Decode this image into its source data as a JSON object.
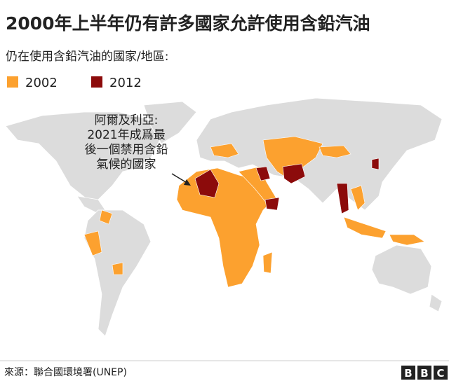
{
  "title": "2000年上半年仍有許多國家允許使用含鉛汽油",
  "subtitle": "仍在使用含鉛汽油的國家/地區:",
  "legend": [
    {
      "name": "2002",
      "color": "#fca12f"
    },
    {
      "name": "2012",
      "color": "#8c0b0b"
    }
  ],
  "annotation": [
    "阿爾及利亞:",
    "2021年成爲最",
    "後一個禁用含鉛",
    "氣候的國家"
  ],
  "source": "來源：聯合國環境署(UNEP)",
  "logo": [
    "B",
    "B",
    "C"
  ]
}
